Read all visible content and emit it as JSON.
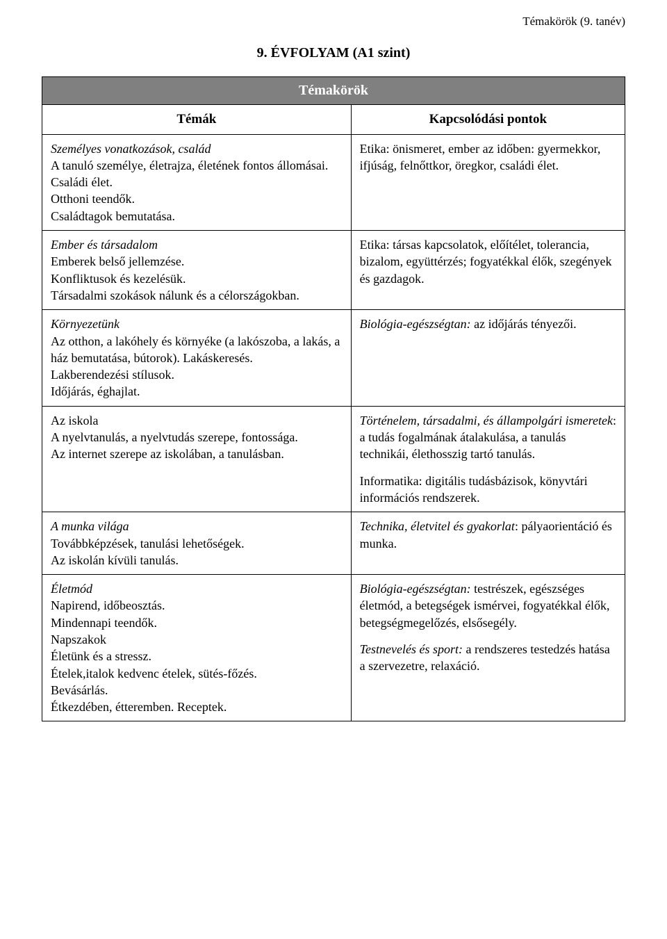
{
  "header_tag": "Témakörök (9. tanév)",
  "main_title": "9.  ÉVFOLYAM  (A1 szint)",
  "table_title": "Témakörök",
  "col_left_header": "Témák",
  "col_right_header": "Kapcsolódási pontok",
  "rows": [
    {
      "left_title_italic": "Személyes vonatkozások, család",
      "left_lines": [
        "A tanuló személye, életrajza, életének fontos állomásai.",
        "Családi élet.",
        "Otthoni teendők.",
        "Családtagok bemutatása."
      ],
      "right_blocks": [
        {
          "text": "Etika: önismeret, ember az időben: gyermekkor, ifjúság, felnőttkor, öregkor, családi élet."
        }
      ]
    },
    {
      "left_title_italic": "Ember és társadalom",
      "left_lines": [
        "Emberek belső jellemzése.",
        "Konfliktusok és kezelésük.",
        "Társadalmi szokások nálunk és a célországokban."
      ],
      "right_blocks": [
        {
          "text": "Etika: társas kapcsolatok, előítélet, tolerancia, bizalom, együttérzés; fogyatékkal élők, szegények és gazdagok."
        }
      ]
    },
    {
      "left_title_italic": "Környezetünk",
      "left_lines": [
        "Az otthon, a lakóhely és környéke (a lakószoba, a lakás, a ház bemutatása, bútorok). Lakáskeresés.",
        "Lakberendezési stílusok.",
        "Időjárás, éghajlat."
      ],
      "right_blocks": [
        {
          "prefix_italic": "Biológia-egészségtan:",
          "text": " az időjárás tényezői."
        }
      ]
    },
    {
      "left_title_italic": "",
      "left_lines": [
        "Az iskola",
        "A nyelvtanulás, a nyelvtudás szerepe, fontossága.",
        "Az internet szerepe az iskolában, a tanulásban."
      ],
      "right_blocks": [
        {
          "prefix_italic": "Történelem, társadalmi, és állampolgári ismeretek",
          "text": ": a tudás fogalmának átalakulása, a tanulás technikái, élethosszig tartó tanulás."
        },
        {
          "gap": true
        },
        {
          "text": "Informatika: digitális tudásbázisok, könyvtári információs rendszerek."
        }
      ]
    },
    {
      "left_title_italic": "A munka világa",
      "left_lines": [
        "Továbbképzések, tanulási lehetőségek.",
        "Az iskolán kívüli tanulás."
      ],
      "right_blocks": [
        {
          "prefix_italic": "Technika, életvitel és gyakorlat",
          "text": ": pályaorientáció és munka."
        }
      ]
    },
    {
      "left_title_italic": "Életmód",
      "left_lines": [
        "Napirend, időbeosztás.",
        "Mindennapi teendők.",
        "Napszakok",
        "Életünk és a stressz.",
        "Ételek,italok kedvenc ételek, sütés-főzés.",
        "Bevásárlás.",
        "Étkezdében, étteremben. Receptek."
      ],
      "right_blocks": [
        {
          "prefix_italic": "Biológia-egészségtan:",
          "text": " testrészek, egészséges életmód, a betegségek ismérvei, fogyatékkal élők, betegségmegelőzés, elsősegély."
        },
        {
          "gap": true
        },
        {
          "prefix_italic_span": "Testne",
          "prefix_italic_rest": "velés és sport:",
          "text": " a rendszeres testedzés hatása a szervezetre, relaxáció."
        }
      ]
    }
  ]
}
